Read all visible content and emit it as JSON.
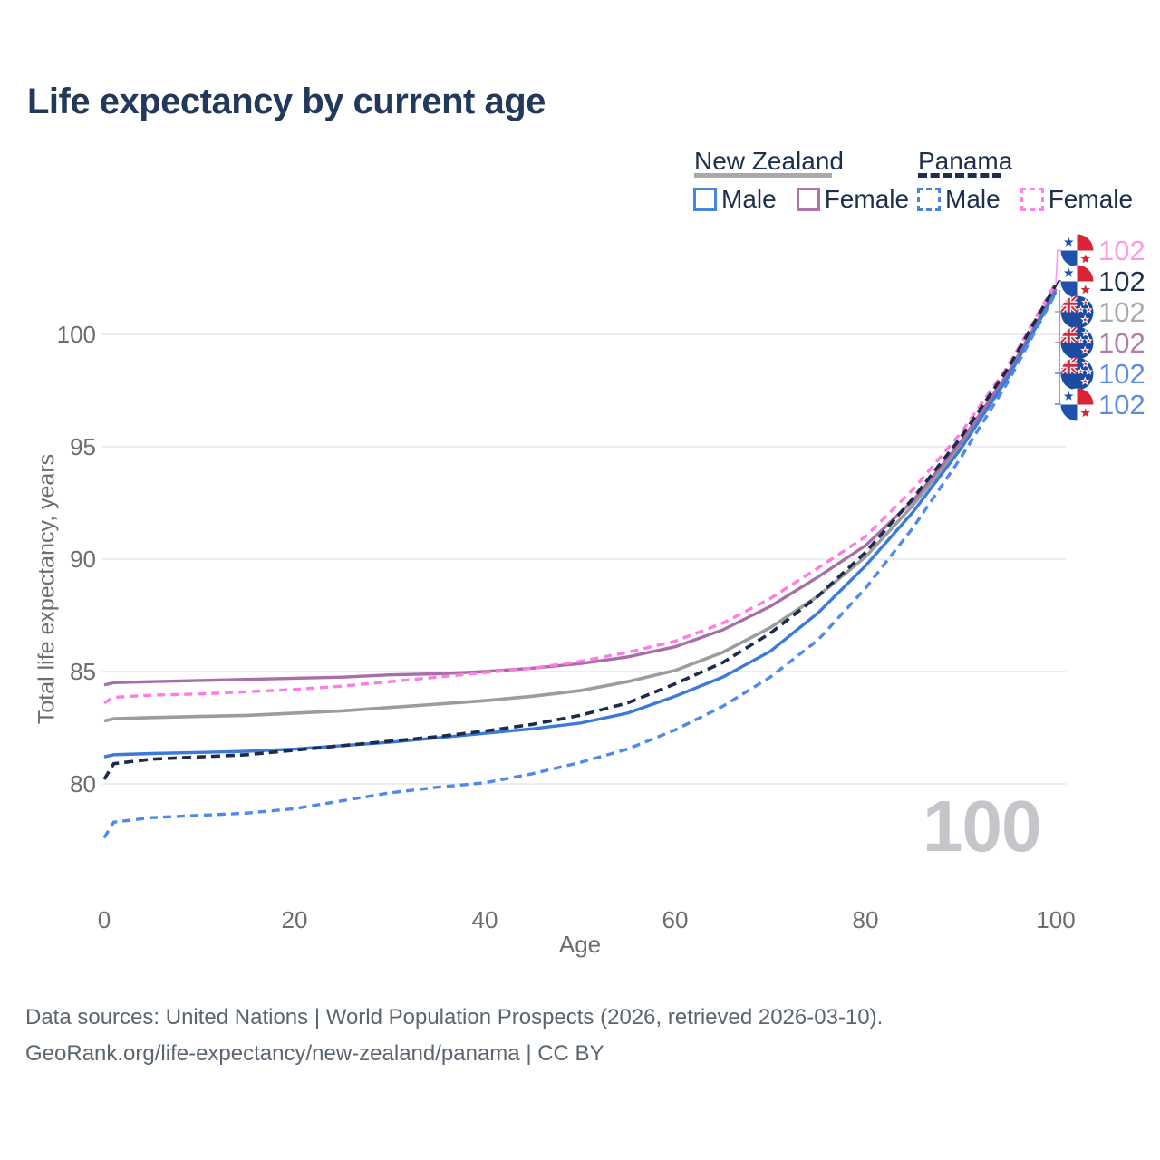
{
  "header": {
    "title": "Life expectancy by current age"
  },
  "legend": {
    "groups": [
      {
        "country": "New Zealand",
        "underline_style": "solid",
        "underline_color": "#a9a9a9",
        "items": [
          {
            "label": "Male",
            "color": "#4a86d8",
            "style": "solid"
          },
          {
            "label": "Female",
            "color": "#b173ac",
            "style": "solid"
          }
        ]
      },
      {
        "country": "Panama",
        "underline_style": "dashed",
        "underline_color": "#1d2e4e",
        "items": [
          {
            "label": "Male",
            "color": "#4a86d8",
            "style": "dashed"
          },
          {
            "label": "Female",
            "color": "#ff85e0",
            "style": "dashed"
          }
        ]
      }
    ]
  },
  "chart_data": {
    "type": "line",
    "title": "Life expectancy by current age",
    "xlabel": "Age",
    "ylabel": "Total life expectancy, years",
    "xlim": [
      0,
      100
    ],
    "ylim": [
      77,
      103
    ],
    "x_ticks": [
      0,
      20,
      40,
      60,
      80,
      100
    ],
    "y_ticks": [
      80,
      85,
      90,
      95,
      100
    ],
    "grid": "horizontal",
    "grid_color": "#ededf0",
    "legend_position": "top-right",
    "watermark": "100",
    "x": [
      0,
      1,
      5,
      10,
      15,
      20,
      25,
      30,
      35,
      40,
      45,
      50,
      55,
      60,
      65,
      70,
      75,
      80,
      85,
      90,
      95,
      100
    ],
    "series": [
      {
        "name": "New Zealand Total",
        "key": "nz-total",
        "color": "#9c9ca0",
        "dash": null,
        "width": 3.6,
        "values": [
          82.8,
          82.9,
          82.95,
          83.0,
          83.05,
          83.15,
          83.25,
          83.4,
          83.55,
          83.7,
          83.9,
          84.15,
          84.55,
          85.05,
          85.85,
          86.95,
          88.35,
          90.1,
          92.4,
          95.05,
          98.2,
          102.05
        ]
      },
      {
        "name": "New Zealand Female",
        "key": "nz-female",
        "color": "#a86fa6",
        "dash": null,
        "width": 3.4,
        "values": [
          84.4,
          84.5,
          84.55,
          84.6,
          84.65,
          84.7,
          84.75,
          84.85,
          84.9,
          85.0,
          85.15,
          85.35,
          85.65,
          86.1,
          86.85,
          87.9,
          89.2,
          90.6,
          92.6,
          95.2,
          98.3,
          102.0
        ]
      },
      {
        "name": "New Zealand Male",
        "key": "nz-male",
        "color": "#3c7ad9",
        "dash": null,
        "width": 3.4,
        "values": [
          81.2,
          81.3,
          81.35,
          81.4,
          81.45,
          81.55,
          81.7,
          81.85,
          82.05,
          82.25,
          82.45,
          82.7,
          83.15,
          83.9,
          84.75,
          85.9,
          87.6,
          89.7,
          92.1,
          94.9,
          98.1,
          101.9
        ]
      },
      {
        "name": "Panama Female",
        "key": "panama-female",
        "color": "#ff7de2",
        "dash": "9 6",
        "width": 3.4,
        "values": [
          83.6,
          83.85,
          83.95,
          84.0,
          84.1,
          84.2,
          84.35,
          84.55,
          84.75,
          84.95,
          85.15,
          85.45,
          85.85,
          86.35,
          87.15,
          88.25,
          89.6,
          91.0,
          93.1,
          95.6,
          98.6,
          102.3
        ]
      },
      {
        "name": "Panama Male",
        "key": "panama-male",
        "color": "#4e89ec",
        "dash": "9 6",
        "width": 3.4,
        "values": [
          77.6,
          78.3,
          78.5,
          78.6,
          78.7,
          78.9,
          79.25,
          79.6,
          79.85,
          80.05,
          80.45,
          80.95,
          81.55,
          82.4,
          83.45,
          84.75,
          86.4,
          88.7,
          91.4,
          94.5,
          97.9,
          101.85
        ]
      },
      {
        "name": "Panama Total",
        "key": "panama-total",
        "color": "#1b2b49",
        "dash": "10 6",
        "width": 3.6,
        "values": [
          80.2,
          80.9,
          81.1,
          81.2,
          81.3,
          81.5,
          81.7,
          81.9,
          82.1,
          82.35,
          82.65,
          83.05,
          83.6,
          84.45,
          85.4,
          86.7,
          88.35,
          90.3,
          92.7,
          95.4,
          98.5,
          102.2
        ]
      }
    ],
    "end_labels": [
      {
        "flag": "panama",
        "text": "102",
        "color": "#ff9ae4",
        "series": "Panama Female"
      },
      {
        "flag": "panama",
        "text": "102",
        "color": "#1d2e4e",
        "series": "Panama Total"
      },
      {
        "flag": "nz",
        "text": "102",
        "color": "#a9a9ad",
        "series": "New Zealand Total"
      },
      {
        "flag": "nz",
        "text": "102",
        "color": "#b07cab",
        "series": "New Zealand Female"
      },
      {
        "flag": "nz",
        "text": "102",
        "color": "#5c8de2",
        "series": "New Zealand Male"
      },
      {
        "flag": "panama",
        "text": "102",
        "color": "#5c8de2",
        "series": "Panama Male"
      }
    ]
  },
  "footer": {
    "line1": "Data sources: United Nations | World Population Prospects (2026, retrieved 2026-03-10).",
    "line2": "GeoRank.org/life-expectancy/new-zealand/panama | CC BY"
  },
  "colors": {
    "title_text": "#22395b",
    "axis_text": "#6d6d71",
    "legend_text": "#1e2f4d",
    "footer_text": "#5b6570",
    "watermark_text": "#c5c5ca",
    "grid": "#ededf0"
  }
}
